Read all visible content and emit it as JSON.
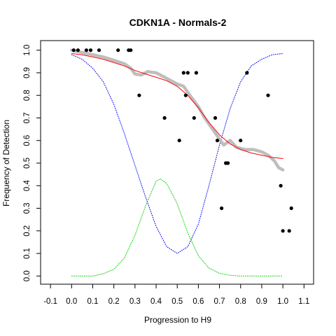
{
  "chart_data": {
    "type": "scatter",
    "title": "CDKN1A - Normals-2",
    "xlabel": "Progression to H9",
    "ylabel": "Frequency of Detection",
    "xlim": [
      -0.1,
      1.1
    ],
    "ylim": [
      0.0,
      1.0
    ],
    "x_ticks": [
      "-0.1",
      "0.0",
      "0.1",
      "0.2",
      "0.3",
      "0.4",
      "0.5",
      "0.6",
      "0.7",
      "0.8",
      "0.9",
      "1.0",
      "1.1"
    ],
    "y_ticks": [
      "0.0",
      "0.1",
      "0.2",
      "0.3",
      "0.4",
      "0.5",
      "0.6",
      "0.7",
      "0.8",
      "0.9",
      "1.0"
    ],
    "grid": false,
    "legend": "none",
    "colors": {
      "points": "#000000",
      "smoothed": "#bebebe",
      "fit": "#ff0000",
      "blue_curve": "#0000ff",
      "green_curve": "#00cc00"
    },
    "series": [
      {
        "type": "scatter",
        "role": "detections",
        "x": [
          0.01,
          0.03,
          0.07,
          0.09,
          0.13,
          0.22,
          0.27,
          0.28,
          0.32,
          0.44,
          0.51,
          0.53,
          0.54,
          0.55,
          0.58,
          0.59,
          0.68,
          0.69,
          0.71,
          0.73,
          0.74,
          0.8,
          0.83,
          0.93,
          0.99,
          1.0,
          1.03,
          1.04
        ],
        "y": [
          1.0,
          1.0,
          1.0,
          1.0,
          1.0,
          1.0,
          1.0,
          1.0,
          0.8,
          0.7,
          0.6,
          0.9,
          0.8,
          0.9,
          0.7,
          0.9,
          0.7,
          0.6,
          0.3,
          0.5,
          0.5,
          0.6,
          0.9,
          0.8,
          0.4,
          0.2,
          0.2,
          0.3
        ]
      },
      {
        "type": "line",
        "role": "smoothed-detection",
        "x": [
          0.0,
          0.05,
          0.1,
          0.15,
          0.2,
          0.25,
          0.28,
          0.3,
          0.33,
          0.36,
          0.4,
          0.43,
          0.46,
          0.5,
          0.53,
          0.56,
          0.6,
          0.63,
          0.66,
          0.69,
          0.72,
          0.75,
          0.78,
          0.82,
          0.86,
          0.9,
          0.93,
          0.96,
          0.98,
          1.0
        ],
        "y": [
          1.0,
          0.99,
          0.98,
          0.97,
          0.955,
          0.94,
          0.92,
          0.895,
          0.89,
          0.905,
          0.9,
          0.885,
          0.87,
          0.85,
          0.84,
          0.8,
          0.75,
          0.7,
          0.66,
          0.62,
          0.58,
          0.6,
          0.57,
          0.56,
          0.56,
          0.55,
          0.535,
          0.51,
          0.48,
          0.47
        ]
      },
      {
        "type": "line",
        "role": "fit",
        "x": [
          0.0,
          0.05,
          0.1,
          0.15,
          0.2,
          0.25,
          0.3,
          0.35,
          0.4,
          0.45,
          0.5,
          0.55,
          0.6,
          0.65,
          0.7,
          0.75,
          0.8,
          0.85,
          0.9,
          0.95,
          1.0
        ],
        "y": [
          0.985,
          0.98,
          0.97,
          0.96,
          0.945,
          0.93,
          0.91,
          0.895,
          0.88,
          0.865,
          0.84,
          0.8,
          0.745,
          0.68,
          0.625,
          0.585,
          0.56,
          0.545,
          0.535,
          0.525,
          0.52
        ]
      },
      {
        "type": "line",
        "role": "blue-dotted",
        "x": [
          0.0,
          0.05,
          0.1,
          0.15,
          0.2,
          0.25,
          0.3,
          0.35,
          0.4,
          0.45,
          0.5,
          0.55,
          0.6,
          0.65,
          0.7,
          0.75,
          0.8,
          0.85,
          0.9,
          0.95,
          1.0
        ],
        "y": [
          0.98,
          0.96,
          0.92,
          0.86,
          0.76,
          0.63,
          0.49,
          0.35,
          0.22,
          0.13,
          0.1,
          0.13,
          0.23,
          0.4,
          0.58,
          0.74,
          0.86,
          0.93,
          0.96,
          0.98,
          0.985
        ]
      },
      {
        "type": "line",
        "role": "green-dotted",
        "x": [
          0.0,
          0.05,
          0.1,
          0.15,
          0.2,
          0.25,
          0.3,
          0.35,
          0.4,
          0.42,
          0.45,
          0.5,
          0.55,
          0.6,
          0.65,
          0.7,
          0.75,
          0.8,
          0.9,
          1.0
        ],
        "y": [
          0.0,
          0.0,
          0.0,
          0.01,
          0.03,
          0.08,
          0.18,
          0.31,
          0.42,
          0.43,
          0.41,
          0.32,
          0.19,
          0.09,
          0.035,
          0.012,
          0.003,
          0.0,
          0.0,
          0.0
        ]
      }
    ]
  }
}
